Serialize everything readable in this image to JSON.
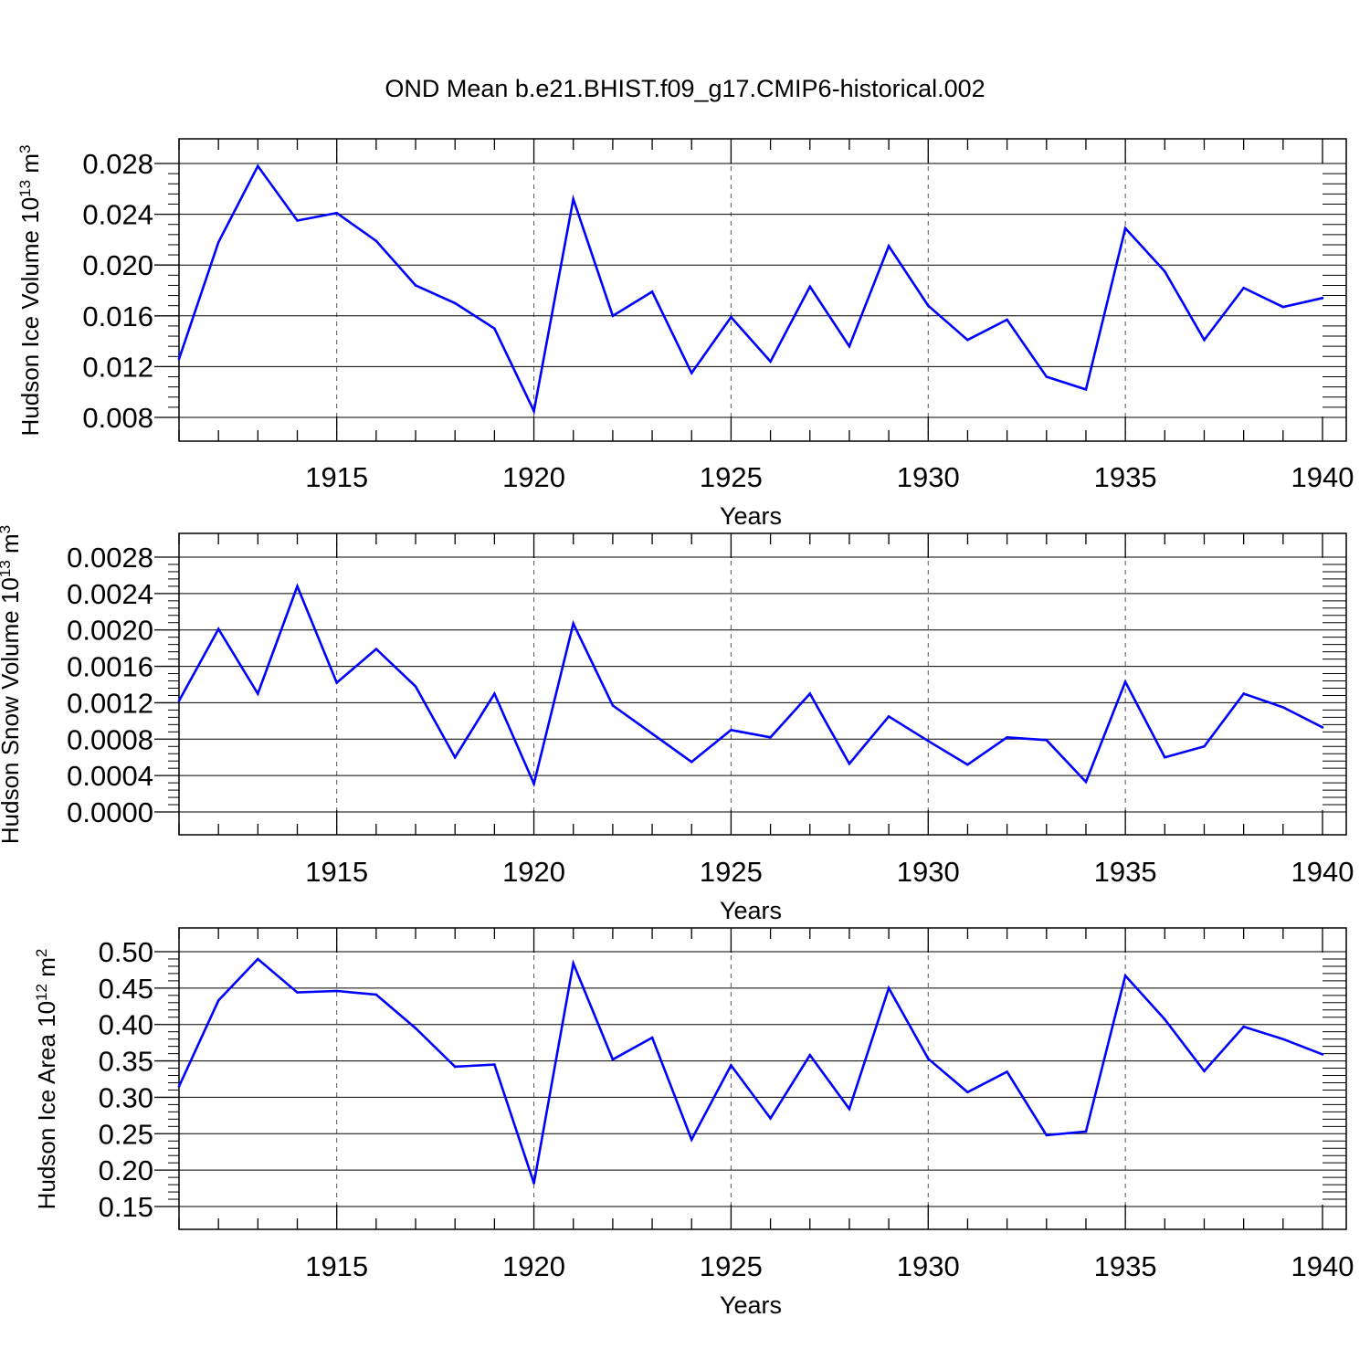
{
  "title": "OND Mean b.e21.BHIST.f09_g17.CMIP6-historical.002",
  "colors": {
    "series": "#0000ff",
    "axis": "#000000",
    "grid": "#555555"
  },
  "chart_data": [
    {
      "type": "line",
      "ylabel": {
        "base": "Hudson Ice Volume 10",
        "exp": "13",
        "unit": " m",
        "unit_exp": "3"
      },
      "xlabel": "Years",
      "xlim": [
        1911,
        1940
      ],
      "ylim": [
        0.008,
        0.028
      ],
      "yticks": [
        0.008,
        0.012,
        0.016,
        0.02,
        0.024,
        0.028
      ],
      "ytick_labels": [
        "0.008",
        "0.012",
        "0.016",
        "0.020",
        "0.024",
        "0.028"
      ],
      "xticks": [
        1915,
        1920,
        1925,
        1930,
        1935,
        1940
      ],
      "xtick_labels": [
        "1915",
        "1920",
        "1925",
        "1930",
        "1935",
        "1940"
      ],
      "grid": "vertical dashed at major x ticks",
      "x": [
        1911,
        1912,
        1913,
        1914,
        1915,
        1916,
        1917,
        1918,
        1919,
        1920,
        1921,
        1922,
        1923,
        1924,
        1925,
        1926,
        1927,
        1928,
        1929,
        1930,
        1931,
        1932,
        1933,
        1934,
        1935,
        1936,
        1937,
        1938,
        1939,
        1940
      ],
      "values": [
        0.0126,
        0.0218,
        0.0278,
        0.0235,
        0.0241,
        0.0219,
        0.0184,
        0.017,
        0.015,
        0.0085,
        0.0252,
        0.016,
        0.0179,
        0.0115,
        0.0159,
        0.0124,
        0.0183,
        0.0136,
        0.0215,
        0.0168,
        0.0141,
        0.0157,
        0.0112,
        0.0102,
        0.0229,
        0.0195,
        0.0141,
        0.0182,
        0.0167,
        0.0174
      ]
    },
    {
      "type": "line",
      "ylabel": {
        "base": "Hudson Snow Volume 10",
        "exp": "13",
        "unit": " m",
        "unit_exp": "3"
      },
      "xlabel": "Years",
      "xlim": [
        1911,
        1940
      ],
      "ylim": [
        0.0,
        0.0028
      ],
      "yticks": [
        0.0,
        0.0004,
        0.0008,
        0.0012,
        0.0016,
        0.002,
        0.0024,
        0.0028
      ],
      "ytick_labels": [
        "0.0000",
        "0.0004",
        "0.0008",
        "0.0012",
        "0.0016",
        "0.0020",
        "0.0024",
        "0.0028"
      ],
      "xticks": [
        1915,
        1920,
        1925,
        1930,
        1935,
        1940
      ],
      "xtick_labels": [
        "1915",
        "1920",
        "1925",
        "1930",
        "1935",
        "1940"
      ],
      "grid": "vertical dashed at major x ticks",
      "x": [
        1911,
        1912,
        1913,
        1914,
        1915,
        1916,
        1917,
        1918,
        1919,
        1920,
        1921,
        1922,
        1923,
        1924,
        1925,
        1926,
        1927,
        1928,
        1929,
        1930,
        1931,
        1932,
        1933,
        1934,
        1935,
        1936,
        1937,
        1938,
        1939,
        1940
      ],
      "values": [
        0.00122,
        0.00201,
        0.0013,
        0.00248,
        0.00142,
        0.00179,
        0.00138,
        0.0006,
        0.0013,
        0.00031,
        0.00207,
        0.00117,
        0.00086,
        0.00055,
        0.0009,
        0.00082,
        0.0013,
        0.00053,
        0.00105,
        0.00078,
        0.00052,
        0.00082,
        0.00079,
        0.00033,
        0.00143,
        0.0006,
        0.00072,
        0.0013,
        0.00115,
        0.00093
      ]
    },
    {
      "type": "line",
      "ylabel": {
        "base": "Hudson Ice Area 10",
        "exp": "12",
        "unit": " m",
        "unit_exp": "2"
      },
      "xlabel": "Years",
      "xlim": [
        1911,
        1940
      ],
      "ylim": [
        0.15,
        0.5
      ],
      "yticks": [
        0.15,
        0.2,
        0.25,
        0.3,
        0.35,
        0.4,
        0.45,
        0.5
      ],
      "ytick_labels": [
        "0.15",
        "0.20",
        "0.25",
        "0.30",
        "0.35",
        "0.40",
        "0.45",
        "0.50"
      ],
      "xticks": [
        1915,
        1920,
        1925,
        1930,
        1935,
        1940
      ],
      "xtick_labels": [
        "1915",
        "1920",
        "1925",
        "1930",
        "1935",
        "1940"
      ],
      "grid": "vertical dashed at major x ticks",
      "x": [
        1911,
        1912,
        1913,
        1914,
        1915,
        1916,
        1917,
        1918,
        1919,
        1920,
        1921,
        1922,
        1923,
        1924,
        1925,
        1926,
        1927,
        1928,
        1929,
        1930,
        1931,
        1932,
        1933,
        1934,
        1935,
        1936,
        1937,
        1938,
        1939,
        1940
      ],
      "values": [
        0.315,
        0.433,
        0.49,
        0.444,
        0.446,
        0.441,
        0.395,
        0.342,
        0.345,
        0.182,
        0.484,
        0.352,
        0.382,
        0.242,
        0.344,
        0.271,
        0.358,
        0.284,
        0.45,
        0.353,
        0.307,
        0.335,
        0.248,
        0.253,
        0.467,
        0.407,
        0.336,
        0.397,
        0.38,
        0.359
      ]
    }
  ]
}
